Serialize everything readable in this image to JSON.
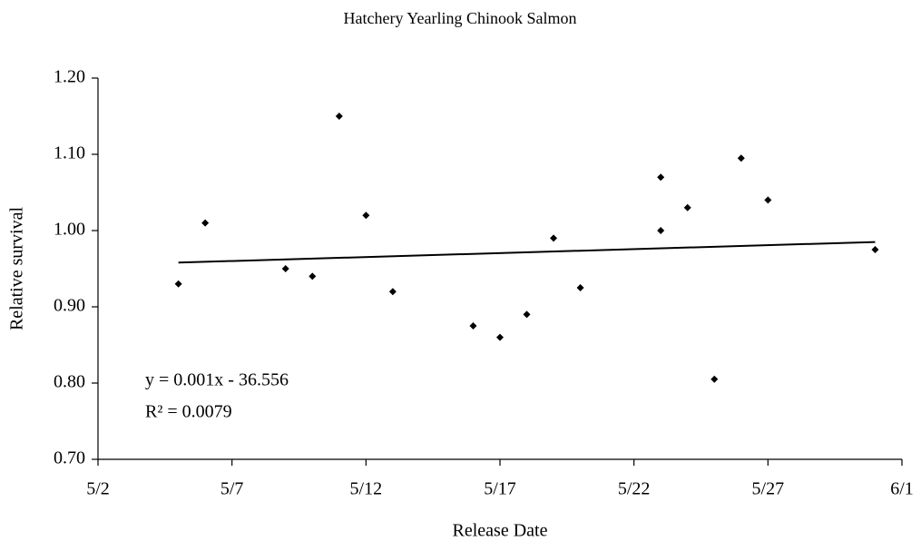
{
  "chart_data": {
    "type": "scatter",
    "title": "Hatchery Yearling Chinook Salmon",
    "x_label": "Release Date",
    "y_label": "Relative survival",
    "x": [
      5,
      6,
      9,
      10,
      11,
      12,
      13,
      16,
      17,
      18,
      19,
      20,
      23,
      23,
      24,
      25,
      26,
      27,
      31
    ],
    "values": [
      0.93,
      1.01,
      0.95,
      0.94,
      1.15,
      1.02,
      0.92,
      0.875,
      0.86,
      0.89,
      0.99,
      0.925,
      1.07,
      1.0,
      1.03,
      0.805,
      1.095,
      1.04,
      0.975
    ],
    "color": "#000000",
    "trendline": {
      "x": [
        5,
        31
      ],
      "values": [
        0.958,
        0.985
      ]
    },
    "annotations": [
      "y = 0.001x - 36.556",
      "R² = 0.0079"
    ],
    "xlim": [
      2,
      32
    ],
    "xticks": [
      {
        "value": 2,
        "label": "5/2"
      },
      {
        "value": 7,
        "label": "5/7"
      },
      {
        "value": 12,
        "label": "5/12"
      },
      {
        "value": 17,
        "label": "5/17"
      },
      {
        "value": 22,
        "label": "5/22"
      },
      {
        "value": 27,
        "label": "5/27"
      },
      {
        "value": 32,
        "label": "6/1"
      }
    ],
    "ylim": [
      0.7,
      1.2
    ],
    "yticks": [
      {
        "value": 0.7,
        "label": "0.70"
      },
      {
        "value": 0.8,
        "label": "0.80"
      },
      {
        "value": 0.9,
        "label": "0.90"
      },
      {
        "value": 1.0,
        "label": "1.00"
      },
      {
        "value": 1.1,
        "label": "1.10"
      },
      {
        "value": 1.2,
        "label": "1.20"
      }
    ],
    "grid": false
  }
}
